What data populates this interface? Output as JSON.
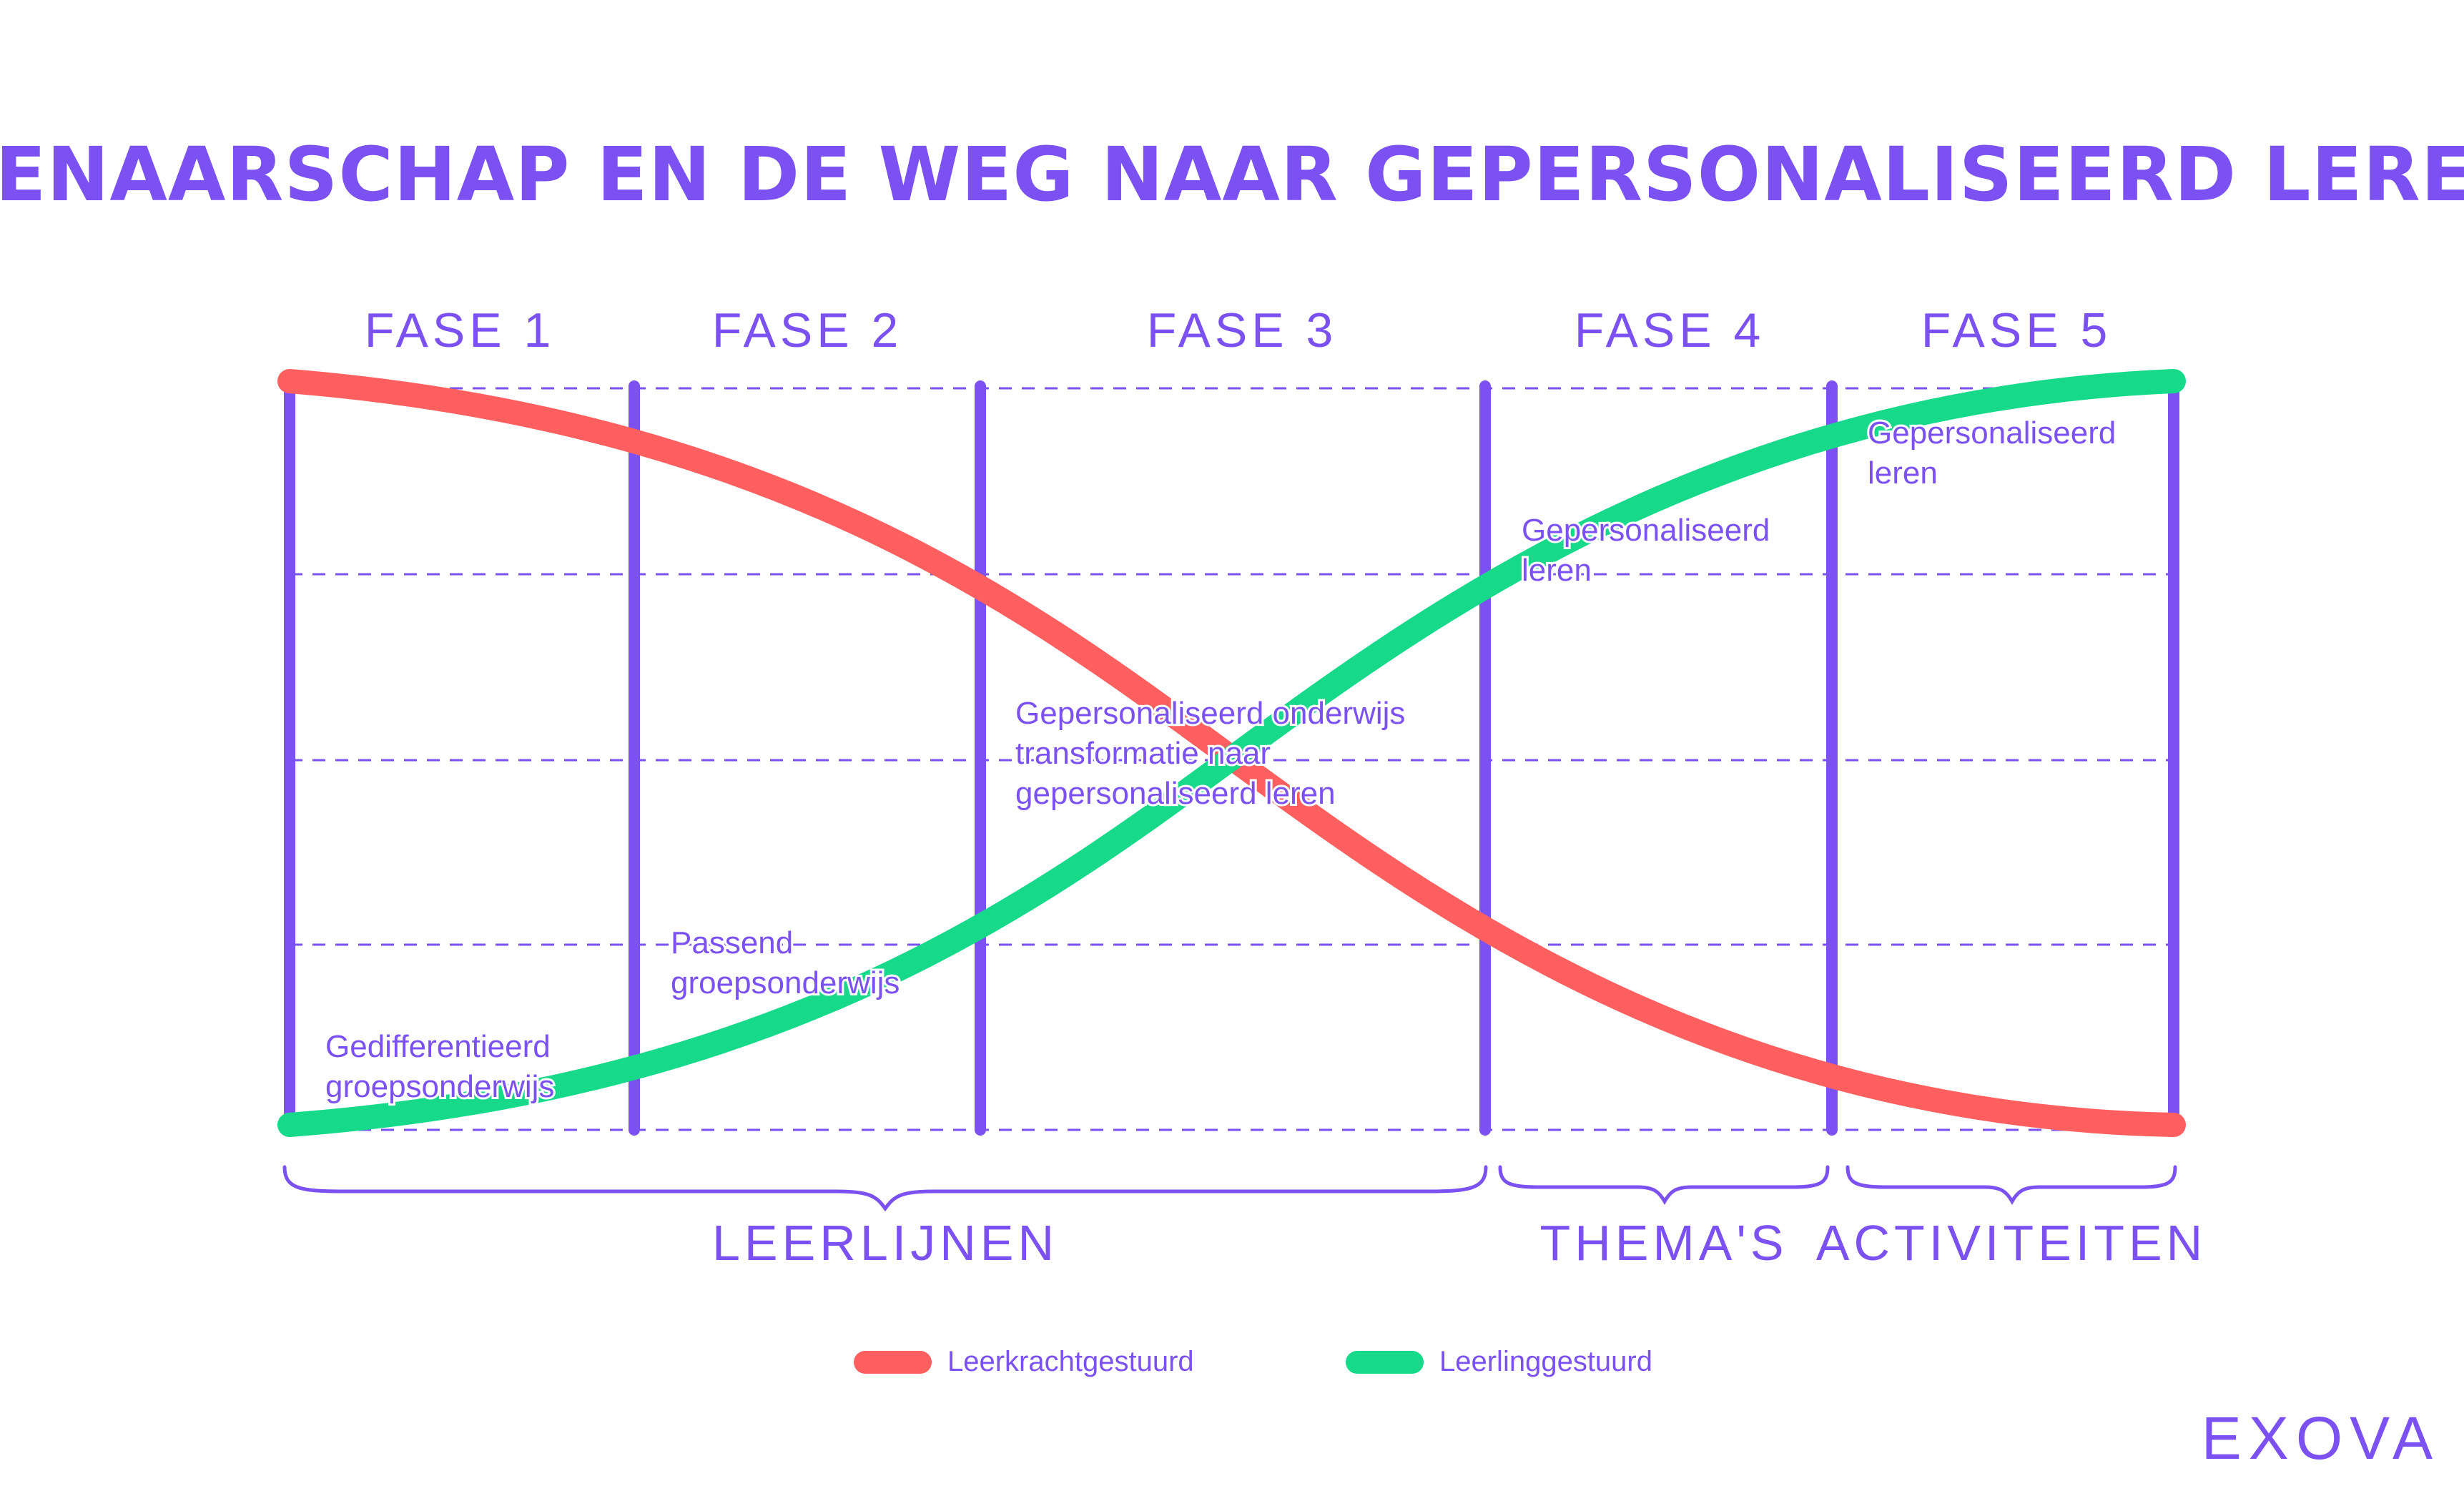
{
  "title": "EIGENAARSCHAP EN DE WEG NAAR GEPERSONALISEERD LEREN®",
  "phases": [
    "FASE 1",
    "FASE 2",
    "FASE 3",
    "FASE 4",
    "FASE 5"
  ],
  "groups": [
    "LEERLIJNEN",
    "THEMA'S",
    "ACTIVITEITEN"
  ],
  "labels": {
    "gedifferentieerd": [
      "Gedifferentieerd",
      "groepsonderwijs"
    ],
    "passend": [
      "Passend",
      "groepsonderwijs"
    ],
    "transformatie": [
      "Gepersonaliseerd onderwijs",
      "transformatie naar",
      "gepersonaliseerd leren"
    ],
    "fase4": [
      "Gepersonaliseerd",
      "leren"
    ],
    "fase5": [
      "Gepersonaliseerd",
      "leren"
    ]
  },
  "legend": [
    {
      "label": "Leerkrachtgestuurd",
      "color": "#ff5f5f"
    },
    {
      "label": "Leerlinggestuurd",
      "color": "#16d98a"
    }
  ],
  "logo": "EXOVA",
  "colors": {
    "accent": "#7b52f1",
    "teacher": "#ff5f5f",
    "student": "#16d98a"
  }
}
